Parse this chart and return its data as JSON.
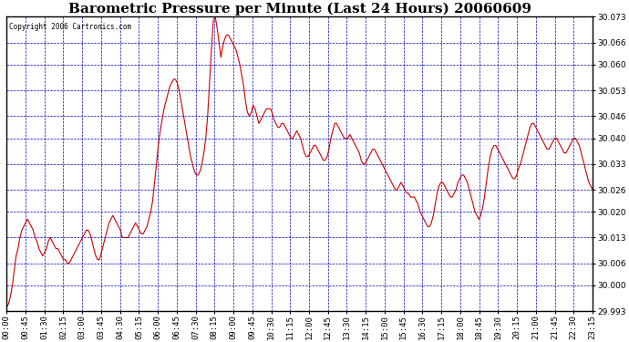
{
  "title": "Barometric Pressure per Minute (Last 24 Hours) 20060609",
  "copyright_text": "Copyright 2006 Cartronics.com",
  "ylim": [
    29.993,
    30.073
  ],
  "yticks": [
    29.993,
    30.0,
    30.006,
    30.013,
    30.02,
    30.026,
    30.033,
    30.04,
    30.046,
    30.053,
    30.06,
    30.066,
    30.073
  ],
  "xtick_labels": [
    "00:00",
    "00:45",
    "01:30",
    "02:15",
    "03:00",
    "03:45",
    "04:30",
    "05:15",
    "06:00",
    "06:45",
    "07:30",
    "08:15",
    "09:00",
    "09:45",
    "10:30",
    "11:15",
    "12:00",
    "12:45",
    "13:30",
    "14:15",
    "15:00",
    "15:45",
    "16:30",
    "17:15",
    "18:00",
    "18:45",
    "19:30",
    "20:15",
    "21:00",
    "21:45",
    "22:30",
    "23:15"
  ],
  "line_color": "#cc0000",
  "background_color": "#ffffff",
  "plot_bg_color": "#ffffff",
  "grid_color": "#0000bb",
  "title_fontsize": 11,
  "tick_fontsize": 6.5,
  "copyright_fontsize": 5.5,
  "pressure_data": [
    29.994,
    29.995,
    29.997,
    30.0,
    30.004,
    30.008,
    30.01,
    30.013,
    30.015,
    30.016,
    30.017,
    30.018,
    30.017,
    30.016,
    30.015,
    30.013,
    30.012,
    30.01,
    30.009,
    30.008,
    30.009,
    30.01,
    30.012,
    30.013,
    30.012,
    30.011,
    30.01,
    30.01,
    30.009,
    30.008,
    30.007,
    30.007,
    30.006,
    30.006,
    30.007,
    30.008,
    30.009,
    30.01,
    30.011,
    30.012,
    30.013,
    30.014,
    30.015,
    30.015,
    30.014,
    30.012,
    30.01,
    30.008,
    30.007,
    30.007,
    30.009,
    30.011,
    30.013,
    30.015,
    30.017,
    30.018,
    30.019,
    30.018,
    30.017,
    30.016,
    30.015,
    30.013,
    30.013,
    30.013,
    30.013,
    30.014,
    30.015,
    30.016,
    30.017,
    30.016,
    30.015,
    30.014,
    30.014,
    30.015,
    30.016,
    30.018,
    30.02,
    30.023,
    30.028,
    30.033,
    30.038,
    30.042,
    30.045,
    30.048,
    30.05,
    30.052,
    30.054,
    30.055,
    30.056,
    30.056,
    30.055,
    30.053,
    30.05,
    30.047,
    30.044,
    30.041,
    30.038,
    30.035,
    30.033,
    30.031,
    30.03,
    30.03,
    30.031,
    30.033,
    30.036,
    30.04,
    30.046,
    30.055,
    30.064,
    30.072,
    30.073,
    30.07,
    30.066,
    30.062,
    30.065,
    30.067,
    30.068,
    30.068,
    30.067,
    30.066,
    30.065,
    30.064,
    30.062,
    30.06,
    30.057,
    30.054,
    30.05,
    30.047,
    30.046,
    30.047,
    30.049,
    30.048,
    30.046,
    30.044,
    30.045,
    30.046,
    30.047,
    30.048,
    30.048,
    30.048,
    30.047,
    30.045,
    30.044,
    30.043,
    30.043,
    30.044,
    30.044,
    30.043,
    30.042,
    30.041,
    30.04,
    30.04,
    30.041,
    30.042,
    30.041,
    30.04,
    30.038,
    30.036,
    30.035,
    30.035,
    30.036,
    30.037,
    30.038,
    30.038,
    30.037,
    30.036,
    30.035,
    30.034,
    30.034,
    30.035,
    30.037,
    30.04,
    30.042,
    30.044,
    30.044,
    30.043,
    30.042,
    30.041,
    30.04,
    30.04,
    30.04,
    30.041,
    30.04,
    30.039,
    30.038,
    30.037,
    30.036,
    30.034,
    30.033,
    30.033,
    30.034,
    30.035,
    30.036,
    30.037,
    30.037,
    30.036,
    30.035,
    30.034,
    30.033,
    30.032,
    30.031,
    30.03,
    30.029,
    30.028,
    30.027,
    30.026,
    30.026,
    30.027,
    30.028,
    30.027,
    30.026,
    30.025,
    30.025,
    30.024,
    30.024,
    30.024,
    30.023,
    30.022,
    30.02,
    30.019,
    30.018,
    30.017,
    30.016,
    30.016,
    30.017,
    30.019,
    30.022,
    30.025,
    30.027,
    30.028,
    30.028,
    30.027,
    30.026,
    30.025,
    30.024,
    30.024,
    30.025,
    30.026,
    30.028,
    30.029,
    30.03,
    30.03,
    30.029,
    30.028,
    30.026,
    30.024,
    30.022,
    30.02,
    30.019,
    30.018,
    30.019,
    30.021,
    30.024,
    30.028,
    30.032,
    30.035,
    30.037,
    30.038,
    30.038,
    30.037,
    30.036,
    30.035,
    30.034,
    30.033,
    30.032,
    30.031,
    30.03,
    30.029,
    30.029,
    30.03,
    30.032,
    30.033,
    30.035,
    30.037,
    30.039,
    30.041,
    30.043,
    30.044,
    30.044,
    30.043,
    30.042,
    30.041,
    30.04,
    30.039,
    30.038,
    30.037,
    30.037,
    30.038,
    30.039,
    30.04,
    30.04,
    30.039,
    30.038,
    30.037,
    30.036,
    30.036,
    30.037,
    30.038,
    30.039,
    30.04,
    30.04,
    30.039,
    30.038,
    30.036,
    30.034,
    30.032,
    30.03,
    30.028,
    30.027,
    30.026
  ]
}
